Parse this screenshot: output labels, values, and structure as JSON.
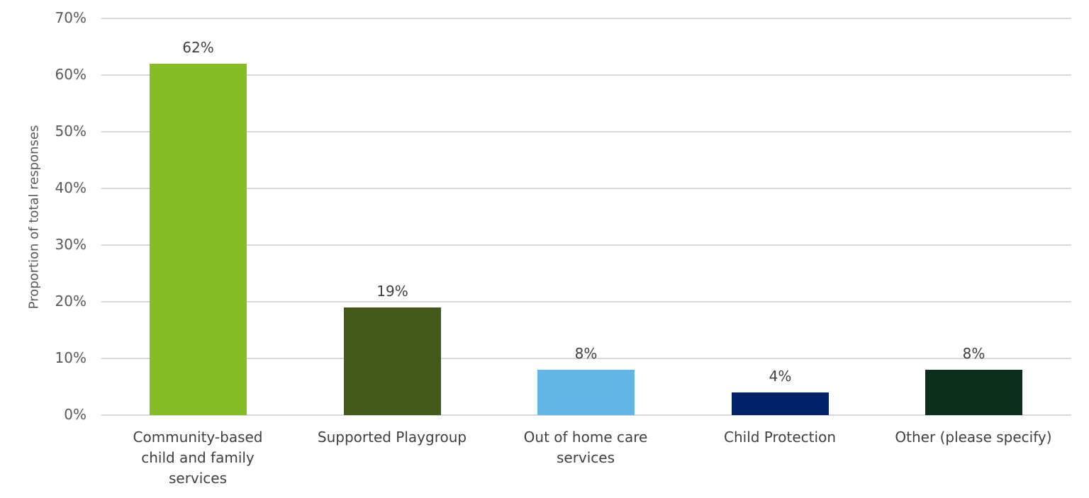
{
  "chart_data": {
    "type": "bar",
    "title": "",
    "xlabel": "",
    "ylabel": "Proportion of total responses",
    "ylim": [
      0,
      70
    ],
    "yticks": [
      "0%",
      "10%",
      "20%",
      "30%",
      "40%",
      "50%",
      "60%",
      "70%"
    ],
    "grid": true,
    "legend": null,
    "categories": [
      "Community-based child and family services",
      "Supported Playgroup",
      "Out of home care services",
      "Child Protection",
      "Other (please specify)"
    ],
    "values": [
      62,
      19,
      8,
      4,
      8
    ],
    "data_labels": [
      "62%",
      "19%",
      "8%",
      "4%",
      "8%"
    ],
    "colors": [
      "#86bc25",
      "#43591a",
      "#62b5e5",
      "#012169",
      "#0c2f1d"
    ]
  },
  "xlabels_lines": [
    [
      "Community-based",
      "child and family",
      "services"
    ],
    [
      "Supported Playgroup"
    ],
    [
      "Out of home care",
      "services"
    ],
    [
      "Child Protection"
    ],
    [
      "Other (please specify)"
    ]
  ]
}
